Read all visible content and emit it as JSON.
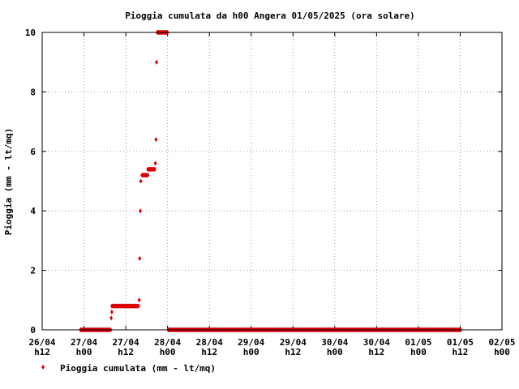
{
  "chart_data": {
    "type": "scatter",
    "title": "Pioggia cumulata da h00 Angera 01/05/2025 (ora solare)",
    "xlabel": "",
    "ylabel": "Pioggia (mm - lt/mq)",
    "xlim": [
      "26/04 12:00",
      "02/05 00:00"
    ],
    "ylim": [
      0,
      10
    ],
    "grid": true,
    "legend_position": "bottom-left",
    "x_ticks": [
      {
        "l1": "26/04",
        "l2": "h12"
      },
      {
        "l1": "27/04",
        "l2": "h00"
      },
      {
        "l1": "27/04",
        "l2": "h12"
      },
      {
        "l1": "28/04",
        "l2": "h00"
      },
      {
        "l1": "28/04",
        "l2": "h12"
      },
      {
        "l1": "29/04",
        "l2": "h00"
      },
      {
        "l1": "29/04",
        "l2": "h12"
      },
      {
        "l1": "30/04",
        "l2": "h00"
      },
      {
        "l1": "30/04",
        "l2": "h12"
      },
      {
        "l1": "01/05",
        "l2": "h00"
      },
      {
        "l1": "01/05",
        "l2": "h12"
      },
      {
        "l1": "02/05",
        "l2": "h00"
      }
    ],
    "y_ticks": [
      "0",
      "2",
      "4",
      "6",
      "8",
      "10"
    ],
    "series": [
      {
        "name": "Pioggia cumulata (mm - lt/mq)",
        "color": "#dd0000",
        "runs": [
          {
            "from": "26/04 23:00",
            "to": "27/04 07:40",
            "y": 0
          },
          {
            "from": "27/04 08:00",
            "to": "27/04 15:40",
            "y": 0.8
          },
          {
            "from": "27/04 16:40",
            "to": "27/04 18:20",
            "y": 5.2
          },
          {
            "from": "27/04 18:20",
            "to": "27/04 20:20",
            "y": 5.4
          },
          {
            "from": "27/04 21:00",
            "to": "28/04 00:00",
            "y": 10
          },
          {
            "from": "28/04 00:10",
            "to": "01/05 12:10",
            "y": 0
          }
        ],
        "points": [
          {
            "x": "27/04 07:50",
            "y": 0.4
          },
          {
            "x": "27/04 08:00",
            "y": 0.6
          },
          {
            "x": "27/04 15:50",
            "y": 1.0
          },
          {
            "x": "27/04 16:00",
            "y": 2.4
          },
          {
            "x": "27/04 16:10",
            "y": 4.0
          },
          {
            "x": "27/04 16:20",
            "y": 5.0
          },
          {
            "x": "27/04 20:30",
            "y": 5.6
          },
          {
            "x": "27/04 20:40",
            "y": 6.4
          },
          {
            "x": "27/04 20:50",
            "y": 9.0
          }
        ]
      }
    ]
  }
}
